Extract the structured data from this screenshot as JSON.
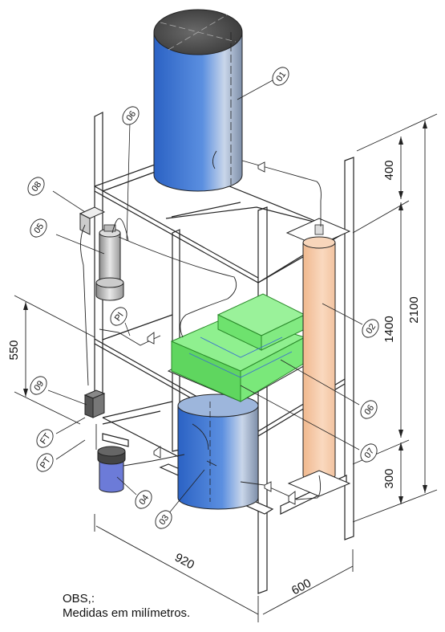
{
  "callouts": {
    "c01": "01",
    "c02": "02",
    "c03": "03",
    "c04": "04",
    "c05": "05",
    "c06a": "06",
    "c06b": "06",
    "c07": "07",
    "c08": "08",
    "c09": "09",
    "pi": "PI",
    "ft": "FT",
    "pt": "PT"
  },
  "dimensions": {
    "d400": "400",
    "d1400": "1400",
    "d2100": "2100",
    "d300": "300",
    "d550": "550",
    "d920": "920",
    "d600": "600"
  },
  "notes": {
    "line1": "OBS,:",
    "line2": "Medidas em milímetros."
  },
  "colors": {
    "tank_blue": "#2f6fd0",
    "heater_peach": "#f6c9a6",
    "green_box": "#6ee26e",
    "frame": "#222222"
  }
}
